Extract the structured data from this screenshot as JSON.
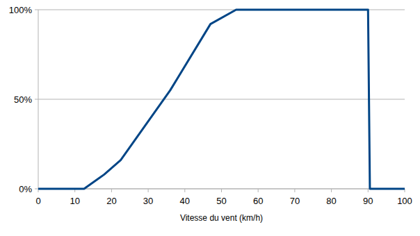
{
  "chart_data": {
    "type": "line",
    "x_label": "Vitesse du vent (km/h)",
    "x": [
      0,
      12.5,
      18,
      22.5,
      36,
      47,
      54,
      90,
      90.5,
      100
    ],
    "values": [
      0,
      0,
      8,
      16,
      55,
      92,
      100,
      100,
      0,
      0
    ],
    "color": "#004586",
    "xlim": [
      0,
      100
    ],
    "xticks": [
      0,
      10,
      20,
      30,
      40,
      50,
      60,
      70,
      80,
      90,
      100
    ],
    "ylim": [
      0,
      100
    ],
    "yticks": [
      {
        "value": 0,
        "label": "0%"
      },
      {
        "value": 50,
        "label": "50%"
      },
      {
        "value": 100,
        "label": "100%"
      }
    ],
    "grid": true
  }
}
